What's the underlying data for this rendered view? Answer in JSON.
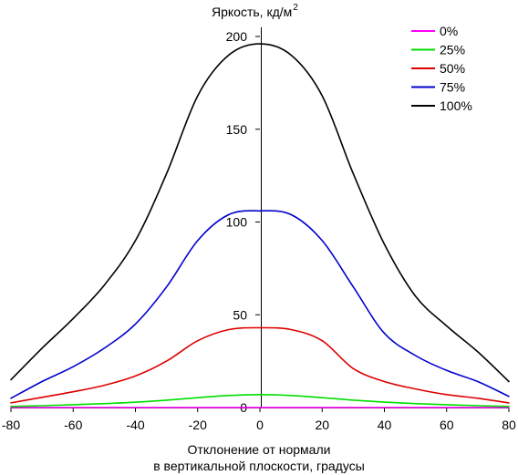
{
  "chart_data": {
    "type": "line",
    "title": "",
    "ylabel": "Яркость, кд/м",
    "ylabel_superscript": "2",
    "xlabel_line1": "Отклонение от нормали",
    "xlabel_line2": "в вертикальной плоскости, градусы",
    "xlim": [
      -80,
      80
    ],
    "ylim": [
      0,
      200
    ],
    "xticks": [
      -80,
      -60,
      -40,
      -20,
      0,
      20,
      40,
      60,
      80
    ],
    "yticks": [
      50,
      100,
      150,
      200
    ],
    "y_zero_label": "0",
    "grid": false,
    "legend_position": "top-right",
    "x": [
      -80,
      -70,
      -60,
      -50,
      -40,
      -30,
      -20,
      -10,
      0,
      10,
      20,
      30,
      40,
      50,
      60,
      70,
      80
    ],
    "series": [
      {
        "name": "0%",
        "color": "#ff00ff",
        "values": [
          0,
          0,
          0,
          0,
          0,
          0,
          0,
          0,
          0,
          0,
          0,
          0,
          0,
          0,
          0,
          0,
          0
        ]
      },
      {
        "name": "25%",
        "color": "#00dd00",
        "values": [
          0.6,
          1.0,
          1.5,
          2.1,
          2.9,
          4.0,
          5.3,
          6.5,
          7.0,
          6.5,
          5.3,
          4.0,
          2.9,
          2.1,
          1.5,
          1.0,
          0.6
        ]
      },
      {
        "name": "50%",
        "color": "#dd0000",
        "values": [
          2.5,
          5.5,
          8.5,
          12,
          17,
          25,
          36,
          42,
          43,
          42,
          36,
          21,
          14,
          10,
          7,
          5,
          2.5
        ]
      },
      {
        "name": "75%",
        "color": "#0000cc",
        "values": [
          5,
          14,
          22,
          32,
          45,
          65,
          90,
          104,
          106,
          104,
          90,
          65,
          40,
          28,
          20,
          14,
          6
        ]
      },
      {
        "name": "100%",
        "color": "#000000",
        "values": [
          15,
          32,
          48,
          66,
          90,
          126,
          168,
          190,
          196,
          190,
          168,
          126,
          88,
          60,
          44,
          30,
          14
        ]
      }
    ]
  }
}
